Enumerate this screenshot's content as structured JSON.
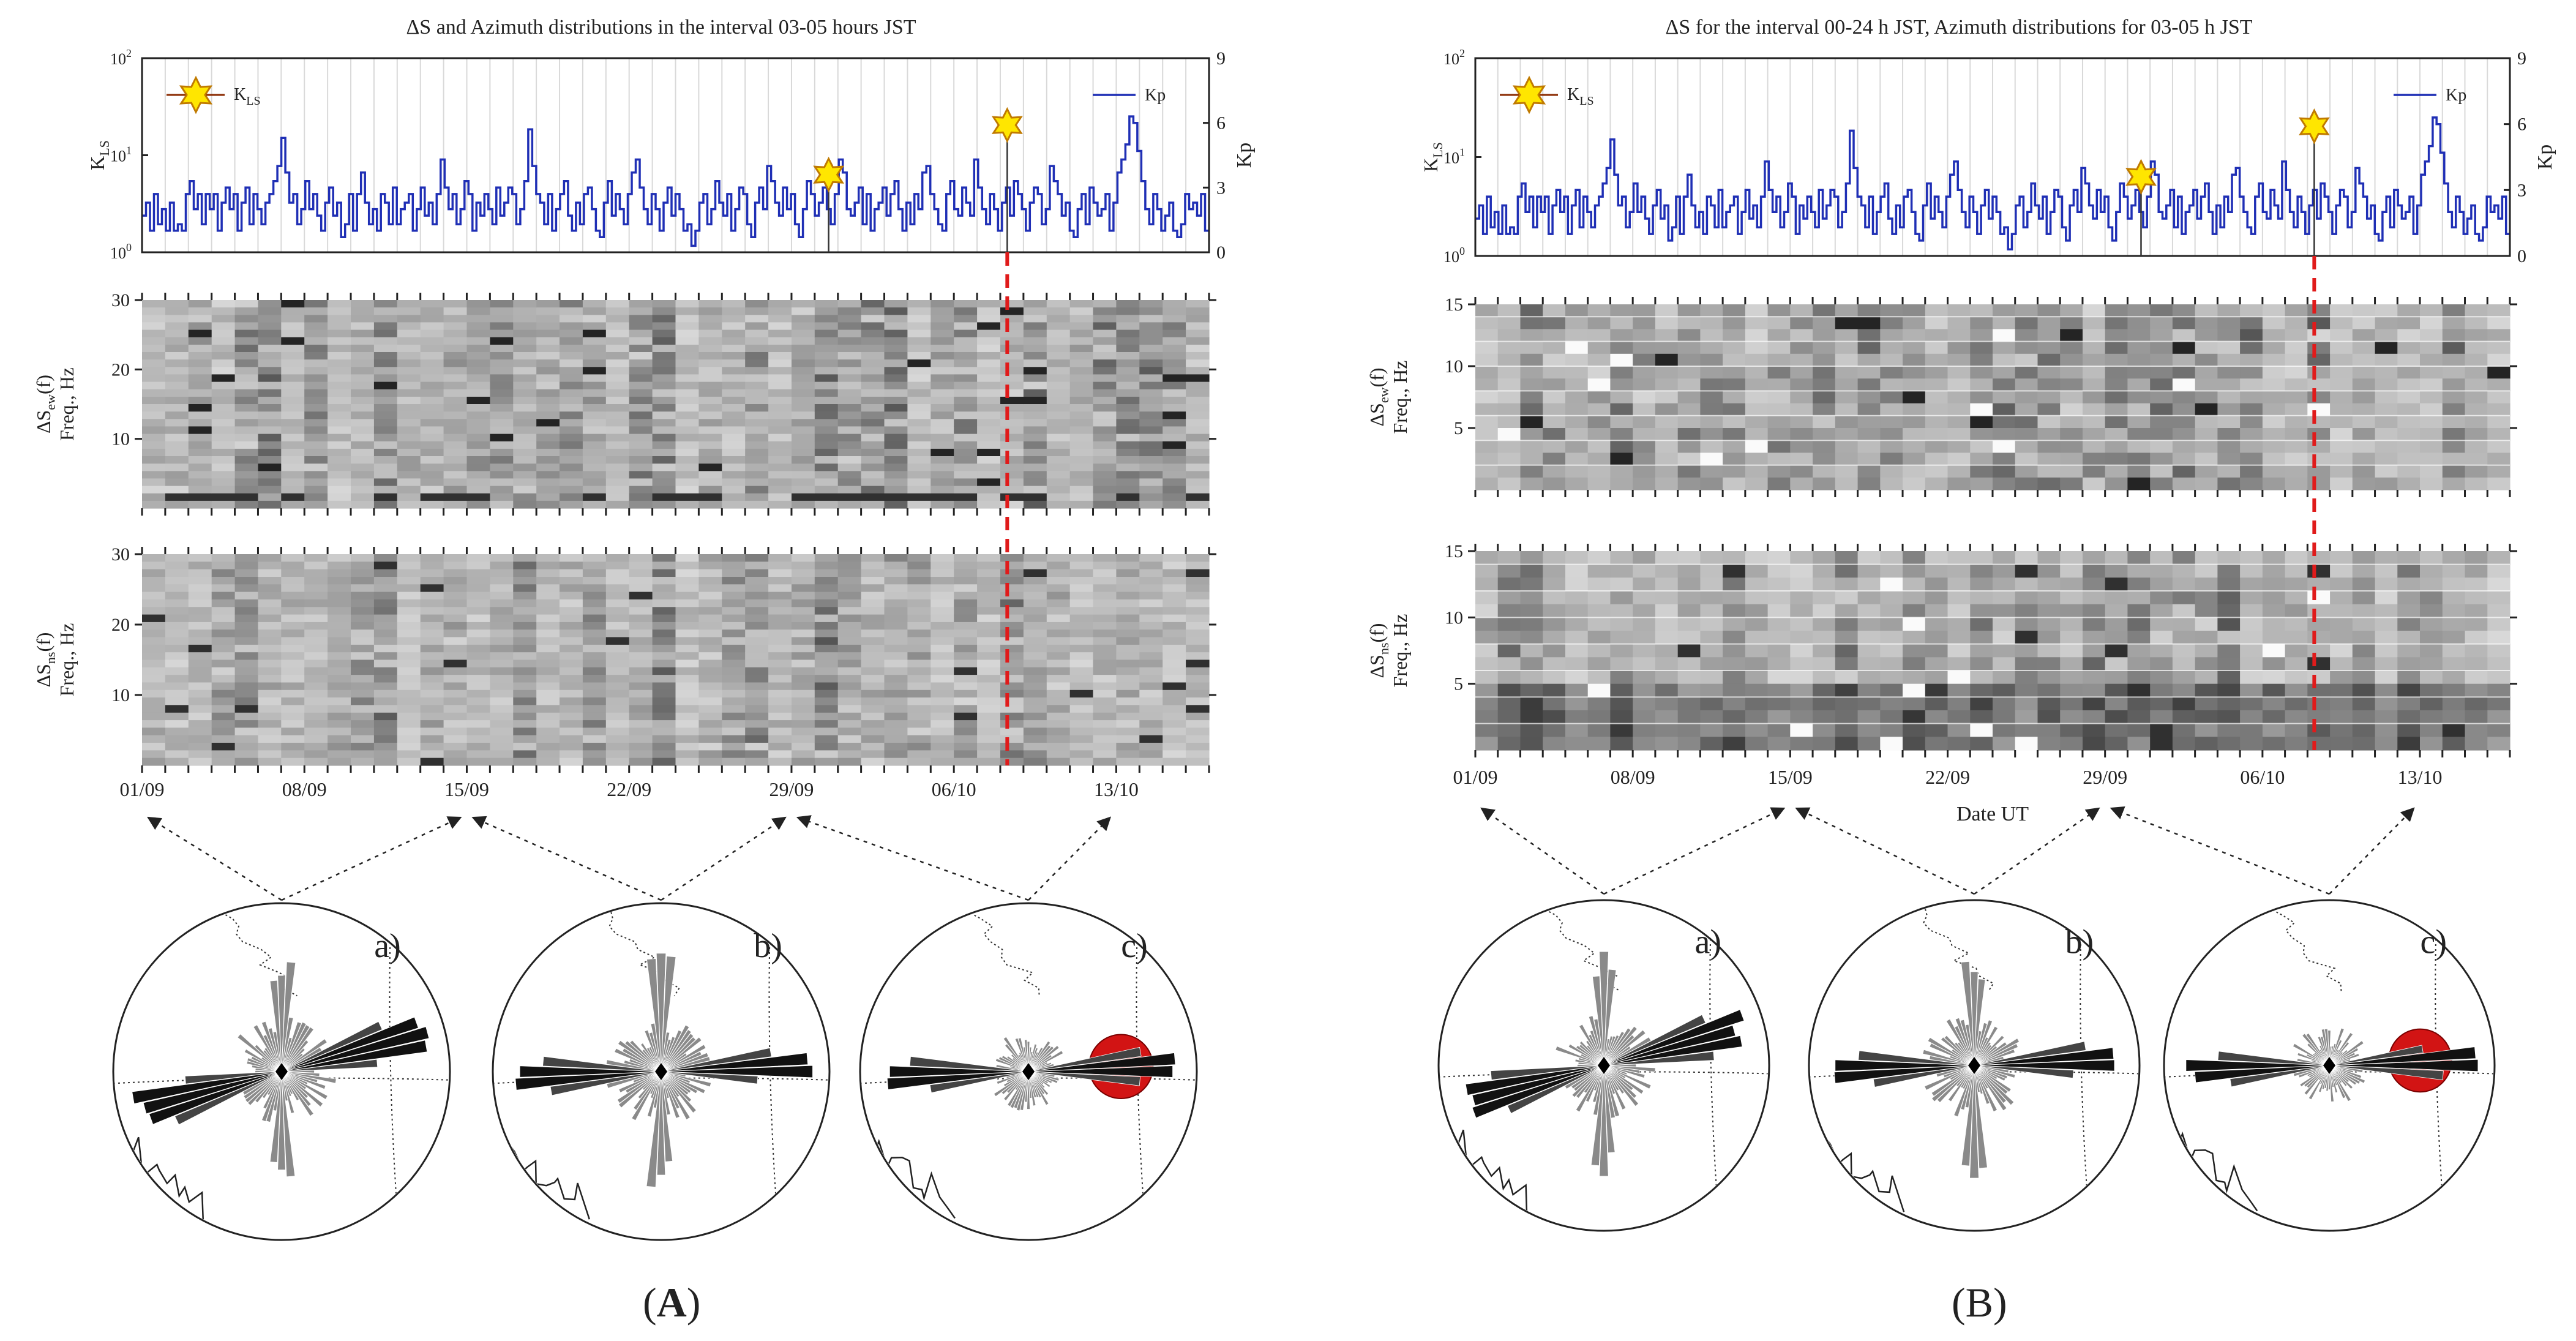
{
  "panels": [
    {
      "id": "A",
      "label": "A",
      "title": "ΔS and Azimuth distributions in  the interval 03-05 hours JST",
      "chart_data": {
        "type": "line",
        "x_range_days": [
          0,
          46
        ],
        "kls": {
          "ylabel_main": "K",
          "ylabel_sub": "LS",
          "ticks": [
            {
              "base": "10",
              "exp": "0"
            },
            {
              "base": "10",
              "exp": "1"
            },
            {
              "base": "10",
              "exp": "2"
            }
          ],
          "legend": "K",
          "legend_sub": "LS",
          "events": [
            {
              "day": 29.6,
              "value": 3.6
            },
            {
              "day": 37.3,
              "value": 5.9
            }
          ]
        },
        "kp": {
          "label": "Kp",
          "ylim": [
            0,
            9
          ],
          "ticks": [
            "0",
            "3",
            "6",
            "9"
          ],
          "legend": "Kp",
          "values": [
            1.7,
            2.3,
            1.0,
            2.7,
            1.3,
            2.0,
            1.0,
            2.3,
            1.0,
            1.3,
            1.0,
            2.7,
            3.3,
            2.0,
            2.7,
            1.3,
            2.7,
            2.0,
            2.7,
            1.0,
            2.3,
            3.0,
            2.0,
            2.7,
            1.0,
            2.3,
            3.0,
            1.3,
            2.7,
            2.0,
            1.3,
            2.3,
            2.7,
            3.3,
            4.0,
            5.3,
            3.7,
            2.3,
            2.7,
            1.3,
            2.0,
            3.3,
            2.0,
            2.7,
            1.7,
            1.0,
            2.3,
            3.0,
            1.7,
            2.3,
            0.7,
            1.3,
            2.7,
            1.0,
            2.7,
            3.7,
            2.3,
            1.3,
            2.0,
            1.0,
            2.7,
            2.3,
            1.3,
            3.0,
            1.3,
            2.0,
            2.3,
            2.7,
            1.0,
            2.0,
            3.0,
            1.7,
            2.3,
            1.3,
            2.7,
            4.3,
            3.0,
            2.0,
            2.7,
            1.3,
            2.0,
            3.3,
            2.7,
            1.0,
            2.3,
            1.7,
            2.7,
            2.0,
            1.3,
            3.0,
            1.7,
            2.3,
            3.0,
            2.7,
            1.3,
            2.0,
            3.3,
            5.7,
            4.0,
            2.7,
            2.3,
            1.3,
            2.7,
            1.0,
            2.0,
            2.7,
            3.3,
            1.7,
            1.0,
            2.3,
            1.3,
            2.7,
            3.0,
            2.0,
            1.0,
            0.7,
            2.3,
            3.3,
            1.7,
            2.7,
            2.0,
            1.3,
            2.7,
            3.7,
            4.3,
            3.0,
            2.0,
            1.3,
            2.7,
            2.0,
            1.0,
            2.3,
            3.0,
            1.7,
            2.7,
            2.0,
            1.0,
            1.3,
            0.3,
            1.0,
            2.3,
            2.7,
            1.3,
            2.0,
            3.3,
            2.3,
            1.7,
            2.7,
            1.0,
            2.0,
            3.0,
            2.7,
            1.3,
            0.7,
            2.3,
            3.0,
            2.0,
            4.0,
            3.3,
            2.3,
            1.7,
            3.0,
            2.0,
            2.7,
            1.3,
            0.7,
            2.0,
            3.3,
            2.7,
            1.7,
            2.3,
            3.0,
            2.0,
            1.3,
            2.7,
            4.3,
            3.7,
            2.0,
            1.7,
            2.3,
            3.0,
            1.3,
            2.7,
            1.0,
            2.0,
            2.3,
            3.0,
            1.7,
            2.7,
            3.3,
            2.0,
            1.0,
            2.3,
            1.3,
            2.7,
            2.0,
            3.7,
            4.0,
            2.7,
            2.0,
            1.3,
            1.0,
            2.7,
            3.3,
            2.0,
            1.7,
            3.0,
            2.3,
            1.7,
            4.3,
            3.0,
            2.0,
            1.3,
            2.7,
            2.0,
            1.0,
            2.3,
            3.0,
            1.7,
            3.3,
            2.7,
            2.0,
            1.0,
            2.3,
            3.0,
            2.7,
            1.3,
            2.0,
            4.0,
            3.3,
            2.7,
            1.7,
            2.3,
            1.0,
            0.7,
            2.0,
            2.7,
            1.3,
            3.0,
            2.3,
            1.7,
            2.0,
            2.7,
            1.0,
            2.3,
            3.7,
            4.3,
            5.0,
            6.3,
            6.0,
            4.7,
            3.3,
            2.0,
            1.3,
            2.7,
            2.0,
            1.0,
            1.7,
            2.3,
            1.0,
            0.7,
            1.3,
            2.7,
            2.0,
            2.3,
            1.7,
            2.7,
            1.0
          ]
        },
        "spectrogram_ew": {
          "ylabel": "ΔS",
          "ylabel_sub": "ew",
          "ylabel_tail": "(f)",
          "ylabel2": "Freq., Hz",
          "ylim": [
            0,
            30
          ],
          "ticks": [
            "10",
            "20",
            "30"
          ]
        },
        "spectrogram_ns": {
          "ylabel": "ΔS",
          "ylabel_sub": "ns",
          "ylabel_tail": "(f)",
          "ylabel2": "Freq., Hz",
          "ylim": [
            0,
            30
          ],
          "ticks": [
            "10",
            "20",
            "30"
          ]
        },
        "dates": [
          "01/09",
          "08/09",
          "15/09",
          "22/09",
          "29/09",
          "06/10",
          "13/10"
        ],
        "xlabel": "",
        "event_line_day": 37.3
      },
      "roses": [
        {
          "label": "a)",
          "anomaly": false,
          "angle": -15
        },
        {
          "label": "b)",
          "anomaly": false,
          "angle": -3
        },
        {
          "label": "c)",
          "anomaly": true,
          "angle": -3
        }
      ]
    },
    {
      "id": "B",
      "label": "B",
      "title": "ΔS for the interval 00-24 h JST, Azimuth distributions for 03-05 h JST",
      "chart_data": {
        "type": "line",
        "x_range_days": [
          0,
          46
        ],
        "kls": {
          "ylabel_main": "K",
          "ylabel_sub": "LS",
          "ticks": [
            {
              "base": "10",
              "exp": "0"
            },
            {
              "base": "10",
              "exp": "1"
            },
            {
              "base": "10",
              "exp": "2"
            }
          ],
          "legend": "K",
          "legend_sub": "LS",
          "events": [
            {
              "day": 29.6,
              "value": 3.6
            },
            {
              "day": 37.3,
              "value": 5.9
            }
          ]
        },
        "kp": {
          "label": "Kp",
          "ylim": [
            0,
            9
          ],
          "ticks": [
            "0",
            "3",
            "6",
            "9"
          ],
          "legend": "Kp",
          "values": [
            1.7,
            2.3,
            1.0,
            2.7,
            1.3,
            2.0,
            1.0,
            2.3,
            1.0,
            1.3,
            1.0,
            2.7,
            3.3,
            2.0,
            2.7,
            1.3,
            2.7,
            2.0,
            2.7,
            1.0,
            2.3,
            3.0,
            2.0,
            2.7,
            1.0,
            2.3,
            3.0,
            1.3,
            2.7,
            2.0,
            1.3,
            2.3,
            2.7,
            3.3,
            4.0,
            5.3,
            3.7,
            2.3,
            2.7,
            1.3,
            2.0,
            3.3,
            2.0,
            2.7,
            1.7,
            1.0,
            2.3,
            3.0,
            1.7,
            2.3,
            0.7,
            1.3,
            2.7,
            1.0,
            2.7,
            3.7,
            2.3,
            1.3,
            2.0,
            1.0,
            2.7,
            2.3,
            1.3,
            3.0,
            1.3,
            2.0,
            2.3,
            2.7,
            1.0,
            2.0,
            3.0,
            1.7,
            2.3,
            1.3,
            2.7,
            4.3,
            3.0,
            2.0,
            2.7,
            1.3,
            2.0,
            3.3,
            2.7,
            1.0,
            2.3,
            1.7,
            2.7,
            2.0,
            1.3,
            3.0,
            1.7,
            2.3,
            3.0,
            2.7,
            1.3,
            2.0,
            3.3,
            5.7,
            4.0,
            2.7,
            2.3,
            1.3,
            2.7,
            1.0,
            2.0,
            2.7,
            3.3,
            1.7,
            1.0,
            2.3,
            1.3,
            2.7,
            3.0,
            2.0,
            1.0,
            0.7,
            2.3,
            3.3,
            1.7,
            2.7,
            2.0,
            1.3,
            2.7,
            3.7,
            4.3,
            3.0,
            2.0,
            1.3,
            2.7,
            2.0,
            1.0,
            2.3,
            3.0,
            1.7,
            2.7,
            2.0,
            1.0,
            1.3,
            0.3,
            1.0,
            2.3,
            2.7,
            1.3,
            2.0,
            3.3,
            2.3,
            1.7,
            2.7,
            1.0,
            2.0,
            3.0,
            2.7,
            1.3,
            0.7,
            2.3,
            3.0,
            2.0,
            4.0,
            3.3,
            2.3,
            1.7,
            3.0,
            2.0,
            2.7,
            1.3,
            0.7,
            2.0,
            3.3,
            2.7,
            1.7,
            2.3,
            3.0,
            2.0,
            1.3,
            2.7,
            4.3,
            3.7,
            2.0,
            1.7,
            2.3,
            3.0,
            1.3,
            2.7,
            1.0,
            2.0,
            2.3,
            3.0,
            1.7,
            2.7,
            3.3,
            2.0,
            1.0,
            2.3,
            1.3,
            2.7,
            2.0,
            3.7,
            4.0,
            2.7,
            2.0,
            1.3,
            1.0,
            2.7,
            3.3,
            2.0,
            1.7,
            3.0,
            2.3,
            1.7,
            4.3,
            3.0,
            2.0,
            1.3,
            2.7,
            2.0,
            1.0,
            2.3,
            3.0,
            1.7,
            3.3,
            2.7,
            2.0,
            1.0,
            2.3,
            3.0,
            2.7,
            1.3,
            2.0,
            4.0,
            3.3,
            2.7,
            1.7,
            2.3,
            1.0,
            0.7,
            2.0,
            2.7,
            1.3,
            3.0,
            2.3,
            1.7,
            2.0,
            2.7,
            1.0,
            2.3,
            3.7,
            4.3,
            5.0,
            6.3,
            6.0,
            4.7,
            3.3,
            2.0,
            1.3,
            2.7,
            2.0,
            1.0,
            1.7,
            2.3,
            1.0,
            0.7,
            1.3,
            2.7,
            2.0,
            2.3,
            1.7,
            2.7,
            1.0
          ]
        },
        "spectrogram_ew": {
          "ylabel": "ΔS",
          "ylabel_sub": "ew",
          "ylabel_tail": "(f)",
          "ylabel2": "Freq., Hz",
          "ylim": [
            0,
            15
          ],
          "ticks": [
            "5",
            "10",
            "15"
          ]
        },
        "spectrogram_ns": {
          "ylabel": "ΔS",
          "ylabel_sub": "ns",
          "ylabel_tail": "(f)",
          "ylabel2": "Freq., Hz",
          "ylim": [
            0,
            15
          ],
          "ticks": [
            "5",
            "10",
            "15"
          ]
        },
        "dates": [
          "01/09",
          "08/09",
          "15/09",
          "22/09",
          "29/09",
          "06/10",
          "13/10"
        ],
        "xlabel": "Date UT",
        "event_line_day": 37.3
      },
      "roses": [
        {
          "label": "a)",
          "anomaly": false,
          "angle": -15
        },
        {
          "label": "b)",
          "anomaly": false,
          "angle": -3
        },
        {
          "label": "c)",
          "anomaly": true,
          "angle": -3
        }
      ]
    }
  ],
  "colors": {
    "kp_line": "#1f2fb5",
    "event_line": "#e01b1b",
    "star_fill": "#ffe600",
    "star_stroke": "#c07a00",
    "anomaly": "#d21414"
  }
}
